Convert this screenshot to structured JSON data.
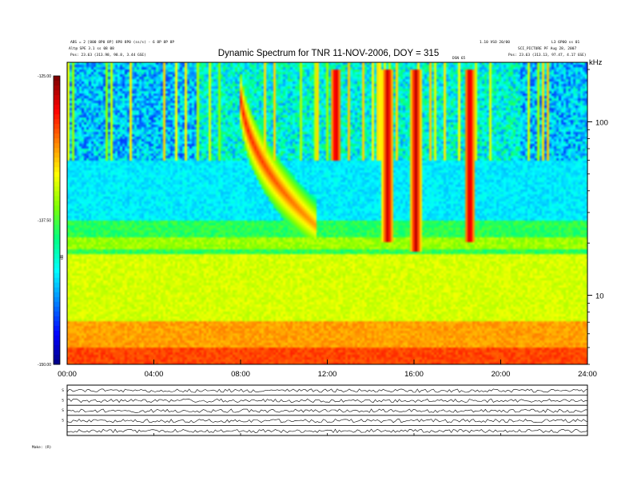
{
  "chart_data": {
    "type": "heatmap",
    "title": "Dynamic Spectrum for TNR 11-NOV-2006, DOY = 315",
    "x": {
      "ticks": [
        "00:00",
        "04:00",
        "08:00",
        "12:00",
        "16:00",
        "20:00",
        "24:00"
      ],
      "tick_values_hours": [
        0,
        4,
        8,
        12,
        16,
        20,
        24
      ],
      "range_hours": [
        0,
        24
      ]
    },
    "y": {
      "scale": "log",
      "unit_label": "kHz",
      "ticks": [
        "100",
        "10"
      ],
      "tick_values": [
        100,
        10
      ],
      "range": [
        4,
        220
      ]
    },
    "colorbar": {
      "unit_label": "dB",
      "ticks": [
        "-125.00",
        "-137.50",
        "-150.00"
      ],
      "tick_values": [
        -125,
        -137.5,
        -150
      ],
      "range": [
        -150,
        -125
      ],
      "colors": [
        "#00007a",
        "#0000ff",
        "#0080ff",
        "#00ffff",
        "#00ff80",
        "#80ff00",
        "#ffff00",
        "#ff8000",
        "#ff0000",
        "#800000"
      ]
    },
    "features": [
      {
        "name": "type-II-like drifting burst",
        "start_hour": 7.9,
        "end_hour": 11.5,
        "freq_start": 200,
        "freq_end": 25
      },
      {
        "name": "burst",
        "hour": 12.4,
        "freq_top": 200,
        "freq_bottom": 60
      },
      {
        "name": "burst",
        "hour": 14.8,
        "freq_top": 200,
        "freq_bottom": 20
      },
      {
        "name": "burst",
        "hour": 16.1,
        "freq_top": 200,
        "freq_bottom": 18
      },
      {
        "name": "burst",
        "hour": 18.6,
        "freq_top": 200,
        "freq_bottom": 20
      }
    ],
    "panels": [
      {
        "label": "S",
        "right_ticks": [
          "",
          "",
          "",
          ""
        ]
      },
      {
        "label": "S",
        "right_ticks": [
          "",
          "",
          "",
          ""
        ]
      },
      {
        "label": "S",
        "right_ticks": [
          "",
          "",
          "",
          ""
        ]
      },
      {
        "label": "S",
        "right_ticks": [
          "",
          "",
          "",
          ""
        ]
      },
      {
        "label": "",
        "right_ticks": [
          "",
          "",
          "",
          ""
        ]
      }
    ]
  },
  "header": {
    "left_line1": "ABS = 2 [000 8P0 8P] 8P8 8P0 (ss/s) - 6 8P 8P 8P",
    "left_line2": "Alt@ SPE 3.1 ss 08 08",
    "left_line3": "Pos: 23.63 (313.98, 98.8, 3.44 GSE)",
    "right_line1": "1.10 VSO 20/00",
    "right_line2": "SCI_PICTURE PF Aug 28, 2007",
    "right_line3": "Pos: 23.63 (313.13, 97.47, 4.17 GSE)",
    "far_right": "L3 6P00 ss 01",
    "mid_label": "DSN 65"
  },
  "footer": {
    "left_label": "Make: (R)"
  }
}
